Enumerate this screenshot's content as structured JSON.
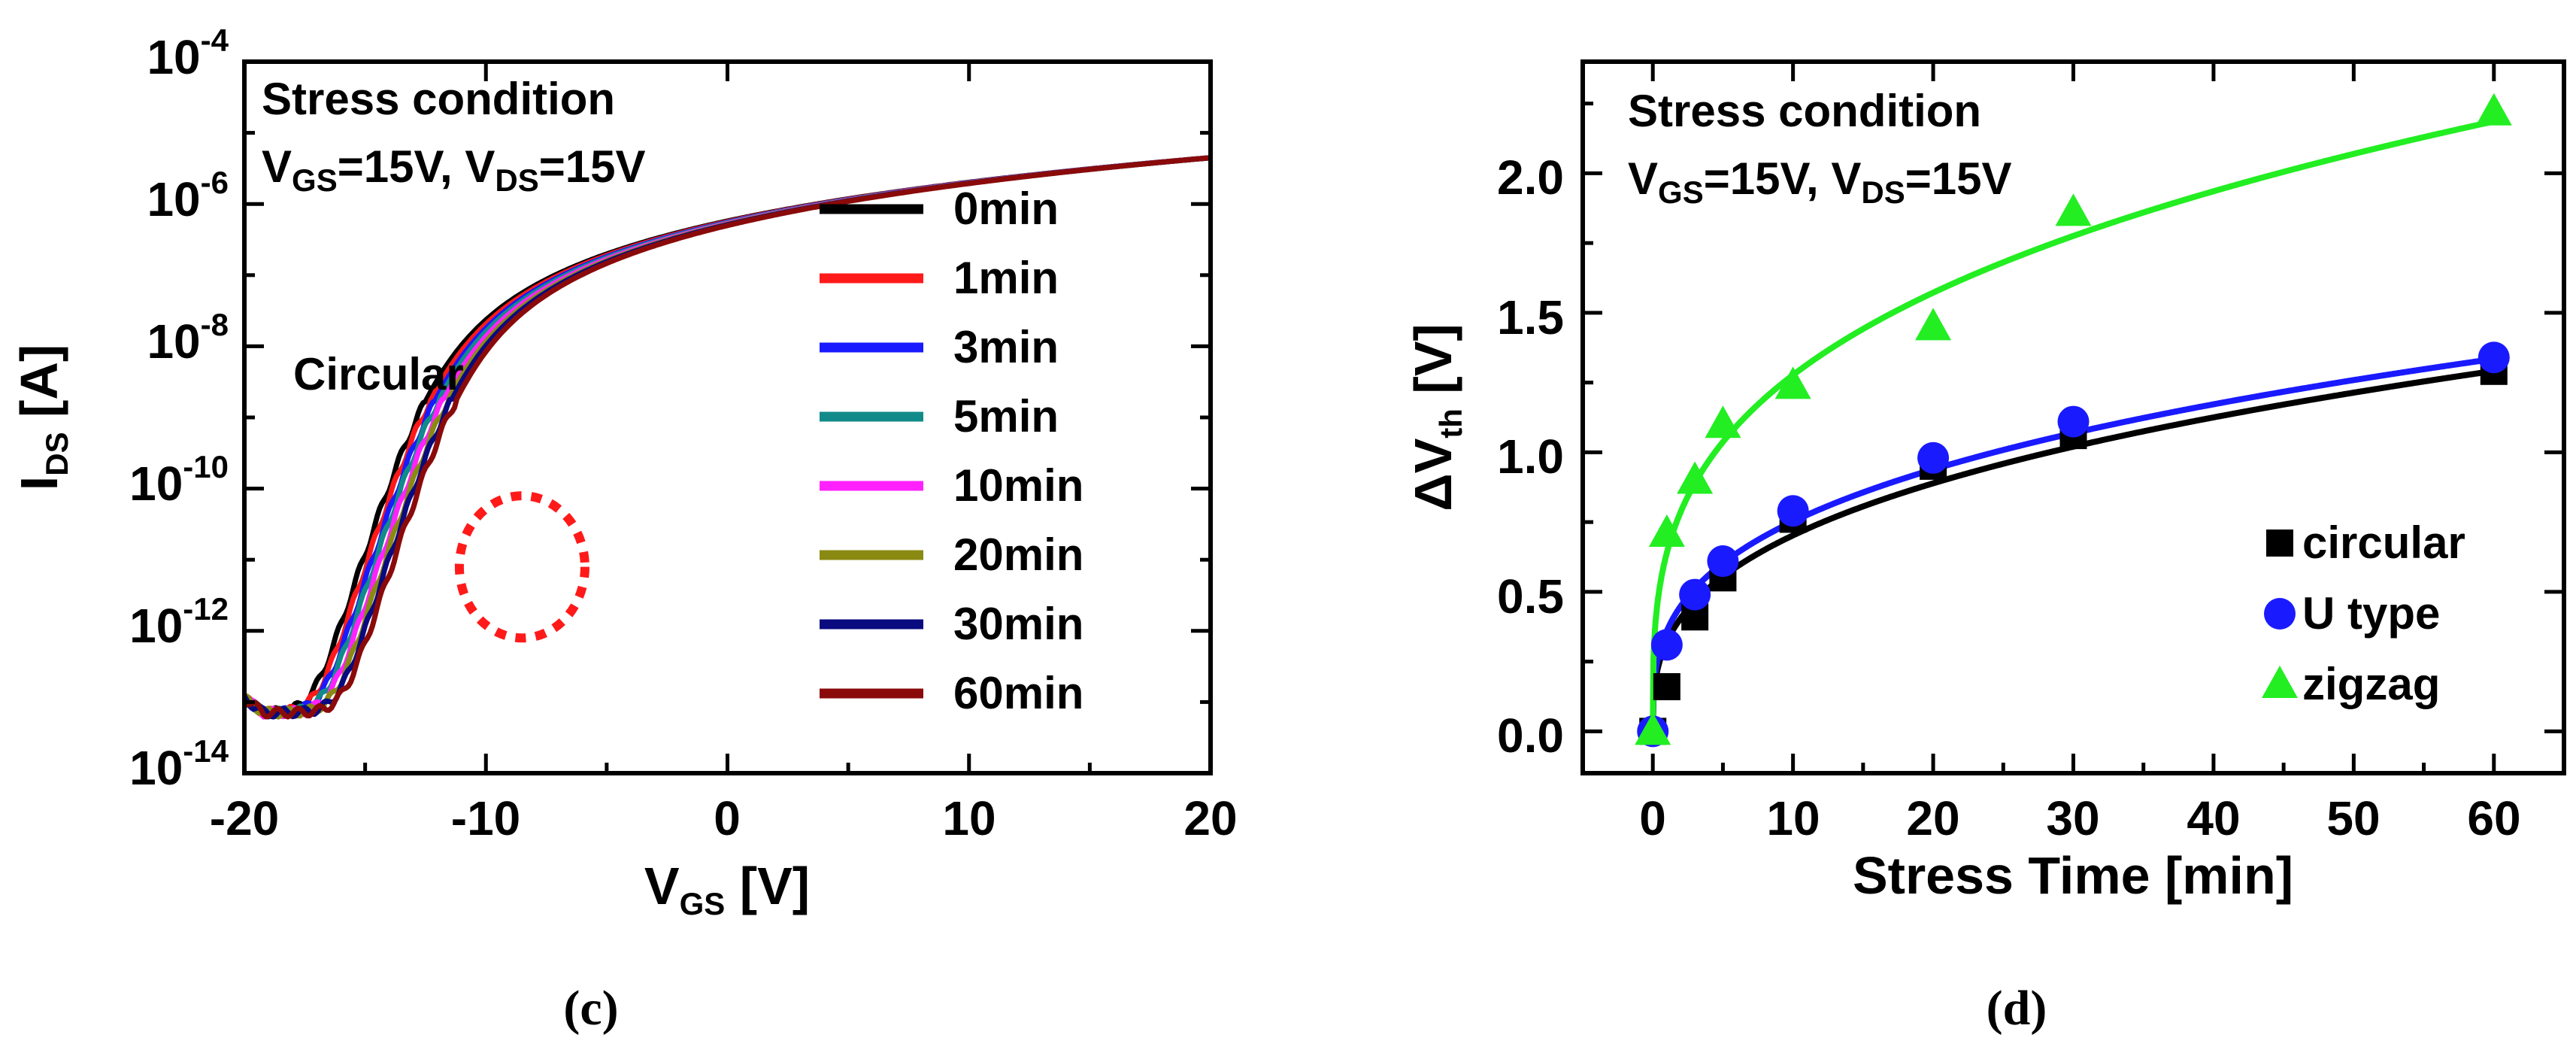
{
  "chart_data": [
    {
      "id": "c",
      "type": "line",
      "caption": "(c)",
      "title_line1": "Stress condition",
      "title_line2": {
        "a": "V",
        "a_sub": "GS",
        "b": "=15V, V",
        "b_sub": "DS",
        "c": "=15V"
      },
      "annotation": "Circular",
      "xlabel": {
        "main": "V",
        "sub": "GS",
        "rest": " [V]"
      },
      "ylabel": {
        "main": "I",
        "sub": "DS",
        "rest": " [A]"
      },
      "xlim": [
        -20,
        20
      ],
      "ylim_log10": [
        -14,
        -4
      ],
      "yscale": "log",
      "xticks": [
        "-20",
        "-10",
        "0",
        "10",
        "20"
      ],
      "yticks": [
        {
          "base": "10",
          "exp": "-4"
        },
        {
          "base": "10",
          "exp": "-6"
        },
        {
          "base": "10",
          "exp": "-8"
        },
        {
          "base": "10",
          "exp": "-10"
        },
        {
          "base": "10",
          "exp": "-12"
        },
        {
          "base": "10",
          "exp": "-14"
        }
      ],
      "model": {
        "off_current_log10": -13.15,
        "on_current_log10_at_20V": -5.35,
        "vt_base": -13.0,
        "subthreshold_slope_v_per_dec": 2.1
      },
      "series": [
        {
          "name": "0min",
          "color": "#000000",
          "shift_v": 0.0
        },
        {
          "name": "1min",
          "color": "#ff1a1a",
          "shift_v": 0.2
        },
        {
          "name": "3min",
          "color": "#1a1aff",
          "shift_v": 0.4
        },
        {
          "name": "5min",
          "color": "#128a8a",
          "shift_v": 0.55
        },
        {
          "name": "10min",
          "color": "#ff22ff",
          "shift_v": 0.75
        },
        {
          "name": "20min",
          "color": "#8a8a12",
          "shift_v": 0.95
        },
        {
          "name": "30min",
          "color": "#0a0a80",
          "shift_v": 1.1
        },
        {
          "name": "60min",
          "color": "#8a0a0a",
          "shift_v": 1.3
        }
      ],
      "highlight": {
        "shape": "dashed-ellipse",
        "color": "#ff1a1a",
        "center_x": -8.5,
        "center_log10": -11.1,
        "rx_v": 2.6,
        "ry_dec": 1.0
      }
    },
    {
      "id": "d",
      "type": "scatter",
      "caption": "(d)",
      "title_line1": "Stress condition",
      "title_line2": {
        "a": "V",
        "a_sub": "GS",
        "b": "=15V, V",
        "b_sub": "DS",
        "c": "=15V"
      },
      "xlabel": "Stress Time [min]",
      "ylabel": {
        "pre": "ΔV",
        "sub": "th",
        "rest": " [V]"
      },
      "xlim": [
        -5,
        65
      ],
      "ylim": [
        -0.15,
        2.4
      ],
      "xticks": [
        "0",
        "10",
        "20",
        "30",
        "40",
        "50",
        "60"
      ],
      "yticks": [
        "0.0",
        "0.5",
        "1.0",
        "1.5",
        "2.0"
      ],
      "x": [
        0,
        1,
        3,
        5,
        10,
        20,
        30,
        60
      ],
      "series": [
        {
          "name": "circular",
          "marker": "square",
          "color": "#000000",
          "values": [
            0.0,
            0.16,
            0.41,
            0.55,
            0.76,
            0.95,
            1.06,
            1.29
          ],
          "fit_coef": 0.321,
          "fit_exp": 0.34
        },
        {
          "name": "U type",
          "marker": "circle",
          "color": "#1a1aff",
          "values": [
            0.0,
            0.31,
            0.49,
            0.61,
            0.79,
            0.98,
            1.11,
            1.34
          ],
          "fit_coef": 0.36,
          "fit_exp": 0.32
        },
        {
          "name": "zigzag",
          "marker": "triangle",
          "color": "#22ee22",
          "values": [
            0.0,
            0.71,
            0.9,
            1.1,
            1.24,
            1.45,
            1.86,
            2.22
          ],
          "fit_coef": 0.64,
          "fit_exp": 0.3
        }
      ]
    }
  ]
}
